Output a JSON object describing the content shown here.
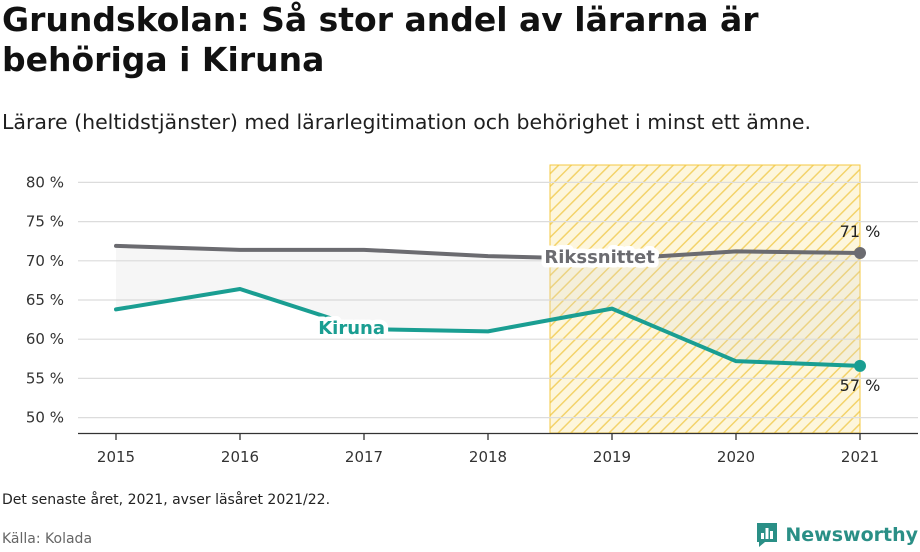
{
  "header": {
    "title": "Grundskolan: Så stor andel av lärarna är behöriga i Kiruna",
    "subtitle": "Lärare (heltidstjänster) med lärarlegitimation och behörighet i minst ett ämne."
  },
  "footer": {
    "note": "Det senaste året, 2021, avser läsåret 2021/22.",
    "source": "Källa: Kolada",
    "brand": "Newsworthy",
    "brand_icon": "bar-chart-speech-bubble-icon",
    "brand_color": "#2a8f86"
  },
  "chart_data": {
    "type": "line",
    "x": [
      2015,
      2016,
      2017,
      2018,
      2019,
      2020,
      2021
    ],
    "ylim": [
      48,
      82
    ],
    "yticks": [
      50,
      55,
      60,
      65,
      70,
      75,
      80
    ],
    "ytick_labels": [
      "50 %",
      "55 %",
      "60 %",
      "65 %",
      "70 %",
      "75 %",
      "80 %"
    ],
    "xtick_labels": [
      "2015",
      "2016",
      "2017",
      "2018",
      "2019",
      "2020",
      "2021"
    ],
    "grid": true,
    "highlight_range": [
      2018.5,
      2021
    ],
    "highlight_color": "#f5c842",
    "series": [
      {
        "name": "Rikssnittet",
        "color": "#6b6b70",
        "values": [
          71.9,
          71.4,
          71.4,
          70.6,
          70.2,
          71.2,
          71.0
        ],
        "end_label": "71 %"
      },
      {
        "name": "Kiruna",
        "color": "#1a9e92",
        "values": [
          63.8,
          66.4,
          61.3,
          61.0,
          63.9,
          57.2,
          56.6
        ],
        "end_label": "57 %"
      }
    ]
  }
}
